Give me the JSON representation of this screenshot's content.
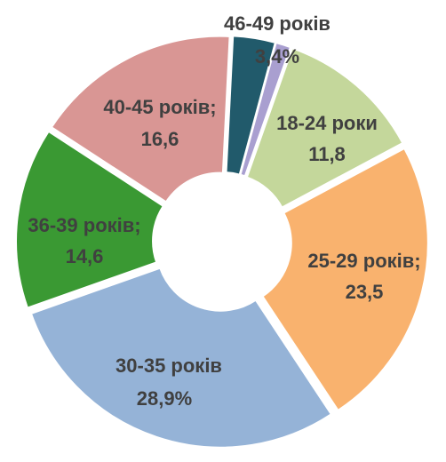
{
  "chart_data": {
    "type": "donut",
    "categories": [
      "46-49 років",
      null,
      "18-24 роки",
      "25-29 років;",
      "30-35 років",
      "36-39 років;",
      "40-45 років;"
    ],
    "values": [
      3.4,
      1.2,
      11.8,
      23.5,
      28.9,
      14.6,
      16.6
    ],
    "value_labels": [
      "3,4%",
      null,
      "11,8",
      "23,5",
      "28,9%",
      "14,6",
      "16,6"
    ],
    "colors": [
      "#215a6b",
      "#a99fd0",
      "#c4d79b",
      "#f9b26e",
      "#95b3d7",
      "#3a9933",
      "#d99694"
    ]
  }
}
